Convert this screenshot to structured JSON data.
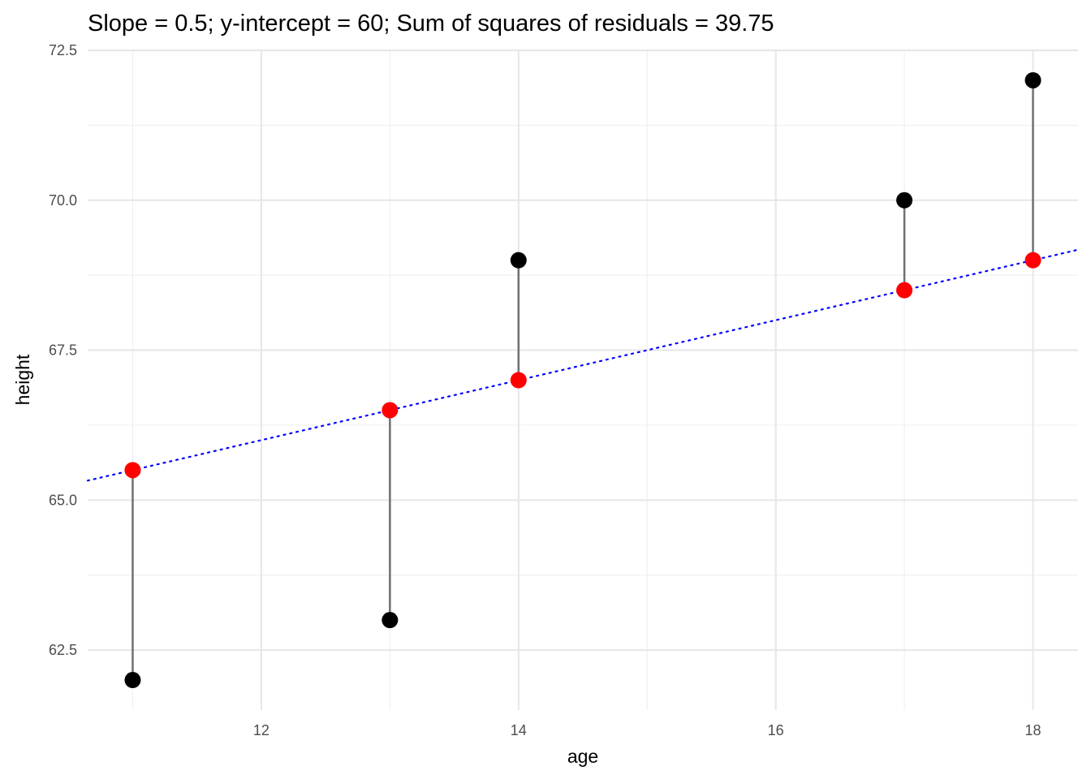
{
  "chart_data": {
    "type": "scatter",
    "title": "Slope = 0.5; y-intercept = 60; Sum of squares of residuals = 39.75",
    "xlabel": "age",
    "ylabel": "height",
    "xlim": [
      10.65,
      18.35
    ],
    "ylim": [
      61.5,
      72.5
    ],
    "x_ticks": [
      12,
      14,
      16,
      18
    ],
    "y_ticks": [
      62.5,
      65.0,
      67.5,
      70.0,
      72.5
    ],
    "x_tick_labels": [
      "12",
      "14",
      "16",
      "18"
    ],
    "y_tick_labels": [
      "62.5",
      "65.0",
      "67.5",
      "70.0",
      "72.5"
    ],
    "grid": true,
    "fit_line": {
      "slope": 0.5,
      "intercept": 60,
      "color": "#0000ff",
      "style": "dotted"
    },
    "observed": {
      "color": "#000000",
      "points": [
        {
          "x": 11,
          "y": 62
        },
        {
          "x": 13,
          "y": 63
        },
        {
          "x": 14,
          "y": 69
        },
        {
          "x": 17,
          "y": 70
        },
        {
          "x": 18,
          "y": 72
        }
      ]
    },
    "fitted": {
      "color": "#ff0000",
      "points": [
        {
          "x": 11,
          "y": 65.5
        },
        {
          "x": 13,
          "y": 66.5
        },
        {
          "x": 14,
          "y": 67
        },
        {
          "x": 17,
          "y": 68.5
        },
        {
          "x": 18,
          "y": 69
        }
      ]
    },
    "residual_color": "#707070"
  }
}
